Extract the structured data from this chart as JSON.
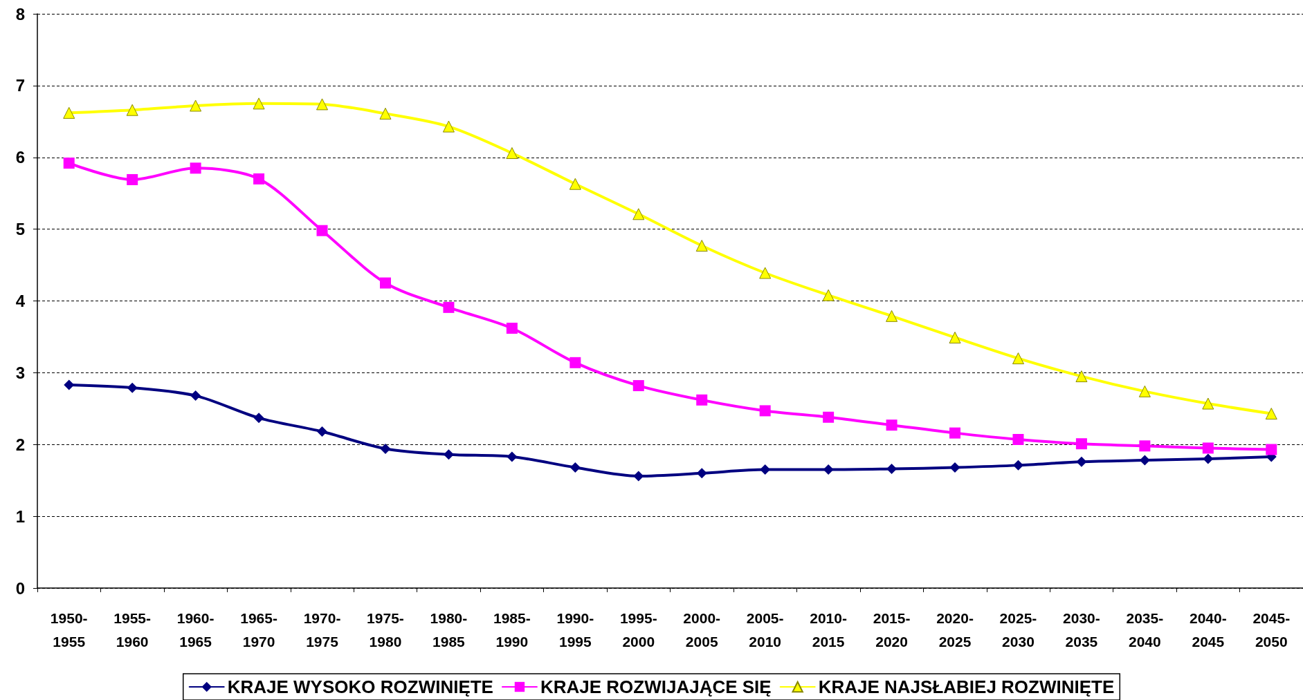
{
  "chart_data": {
    "type": "line",
    "categories": [
      "1950-1955",
      "1955-1960",
      "1960-1965",
      "1965-1970",
      "1970-1975",
      "1975-1980",
      "1980-1985",
      "1985-1990",
      "1990-1995",
      "1995-2000",
      "2000-2005",
      "2005-2010",
      "2010-2015",
      "2015-2020",
      "2020-2025",
      "2025-2030",
      "2030-2035",
      "2035-2040",
      "2040-2045",
      "2045-2050"
    ],
    "series": [
      {
        "name": "KRAJE WYSOKO ROZWINIĘTE",
        "color": "#000080",
        "marker": "diamond",
        "values": [
          2.83,
          2.79,
          2.68,
          2.37,
          2.18,
          1.94,
          1.86,
          1.83,
          1.68,
          1.56,
          1.6,
          1.65,
          1.65,
          1.66,
          1.68,
          1.71,
          1.76,
          1.78,
          1.8,
          1.83
        ]
      },
      {
        "name": "KRAJE ROZWIJAJĄCE SIĘ",
        "color": "#ff00ff",
        "marker": "square",
        "values": [
          5.92,
          5.69,
          5.85,
          5.7,
          4.98,
          4.25,
          3.91,
          3.62,
          3.14,
          2.82,
          2.62,
          2.47,
          2.38,
          2.27,
          2.16,
          2.07,
          2.01,
          1.98,
          1.95,
          1.93
        ]
      },
      {
        "name": "KRAJE NAJSŁABIEJ ROZWINIĘTE",
        "color": "#ffff00",
        "marker": "triangle",
        "values": [
          6.62,
          6.66,
          6.72,
          6.75,
          6.74,
          6.61,
          6.43,
          6.06,
          5.63,
          5.21,
          4.77,
          4.39,
          4.08,
          3.79,
          3.49,
          3.2,
          2.95,
          2.74,
          2.57,
          2.43
        ]
      }
    ],
    "ylim": [
      0,
      8
    ],
    "yticks": [
      0,
      1,
      2,
      3,
      4,
      5,
      6,
      7,
      8
    ],
    "grid": "y",
    "legend": "bottom",
    "line_style": "solid"
  }
}
